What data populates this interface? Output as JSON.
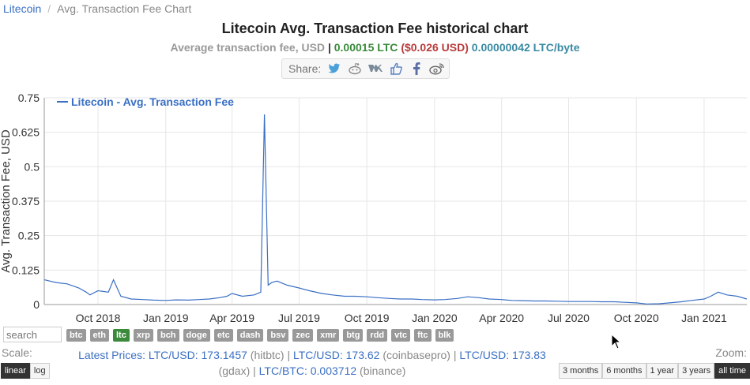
{
  "breadcrumb": {
    "home": "Litecoin",
    "current": "Avg. Transaction Fee Chart"
  },
  "header": {
    "title": "Litecoin Avg. Transaction Fee historical chart",
    "fee_label": "Average transaction fee, USD",
    "fee_ltc": "0.00015 LTC",
    "fee_usd": "($0.026 USD)",
    "fee_byte": "0.00000042 LTC/byte"
  },
  "share": {
    "label": "Share:",
    "icons": [
      "twitter-icon",
      "reddit-icon",
      "vk-icon",
      "like-icon",
      "facebook-icon",
      "weibo-icon"
    ]
  },
  "search": {
    "placeholder": "search"
  },
  "coins": [
    "btc",
    "eth",
    "ltc",
    "xrp",
    "bch",
    "doge",
    "etc",
    "dash",
    "bsv",
    "zec",
    "xmr",
    "btg",
    "rdd",
    "vtc",
    "ftc",
    "blk"
  ],
  "active_coin": "ltc",
  "scale": {
    "label": "Scale:",
    "options": [
      "linear",
      "log"
    ],
    "active": "linear"
  },
  "zoom": {
    "label": "Zoom:",
    "options": [
      "3 months",
      "6 months",
      "1 year",
      "3 years",
      "all time"
    ],
    "active": "all time"
  },
  "prices": {
    "latest_label": "Latest Prices:",
    "p1_pair": "LTC/USD: 173.1457",
    "p1_src": "(hitbtc)",
    "p2_pair": "LTC/USD: 173.62",
    "p2_src": "(coinbasepro)",
    "p3_pair": "LTC/USD: 173.83",
    "p3_src": "(gdax)",
    "p4_pair": "LTC/BTC: 0.003712",
    "p4_src": "(binance)"
  },
  "colors": {
    "series": "#3a6fc4",
    "grid": "#e6e6e6",
    "active_coin": "#3b8a3b"
  },
  "chart_data": {
    "type": "line",
    "title": "",
    "xlabel": "",
    "ylabel": "Avg. Transaction Fee, USD",
    "ylim": [
      0,
      0.75
    ],
    "yticks": [
      0,
      0.125,
      0.25,
      0.375,
      0.5,
      0.625,
      0.75
    ],
    "ytick_labels": [
      "0",
      "0.125",
      "0.25",
      "0.375",
      "0.5",
      "0.625",
      "0.75"
    ],
    "xticks": [
      "2018-10-01",
      "2019-01-01",
      "2019-04-01",
      "2019-07-01",
      "2019-10-01",
      "2020-01-01",
      "2020-04-01",
      "2020-07-01",
      "2020-10-01",
      "2021-01-01"
    ],
    "xtick_labels": [
      "Oct 2018",
      "Jan 2019",
      "Apr 2019",
      "Jul 2019",
      "Oct 2019",
      "Jan 2020",
      "Apr 2020",
      "Jul 2020",
      "Oct 2020",
      "Jan 2021"
    ],
    "xlim": [
      "2018-07-20",
      "2021-02-28"
    ],
    "grid": true,
    "legend": "top-left",
    "series": [
      {
        "name": "Litecoin - Avg. Transaction Fee",
        "x": [
          "2018-07-20",
          "2018-08-05",
          "2018-08-20",
          "2018-09-05",
          "2018-09-15",
          "2018-09-20",
          "2018-10-01",
          "2018-10-15",
          "2018-10-22",
          "2018-11-01",
          "2018-11-15",
          "2018-12-01",
          "2018-12-15",
          "2019-01-01",
          "2019-01-15",
          "2019-02-01",
          "2019-02-15",
          "2019-03-01",
          "2019-03-15",
          "2019-03-25",
          "2019-04-01",
          "2019-04-15",
          "2019-05-01",
          "2019-05-10",
          "2019-05-15",
          "2019-05-20",
          "2019-05-25",
          "2019-06-01",
          "2019-06-15",
          "2019-07-01",
          "2019-07-15",
          "2019-08-01",
          "2019-08-15",
          "2019-09-01",
          "2019-09-15",
          "2019-10-01",
          "2019-10-15",
          "2019-11-01",
          "2019-11-15",
          "2019-12-01",
          "2019-12-15",
          "2020-01-01",
          "2020-01-15",
          "2020-02-01",
          "2020-02-15",
          "2020-03-01",
          "2020-03-15",
          "2020-04-01",
          "2020-04-15",
          "2020-05-01",
          "2020-05-15",
          "2020-06-01",
          "2020-06-15",
          "2020-07-01",
          "2020-07-15",
          "2020-08-01",
          "2020-08-15",
          "2020-09-01",
          "2020-09-15",
          "2020-10-01",
          "2020-10-15",
          "2020-11-01",
          "2020-11-15",
          "2020-12-01",
          "2020-12-15",
          "2021-01-01",
          "2021-01-10",
          "2021-01-20",
          "2021-02-01",
          "2021-02-15",
          "2021-02-28"
        ],
        "values": [
          0.09,
          0.08,
          0.075,
          0.06,
          0.045,
          0.035,
          0.05,
          0.045,
          0.09,
          0.03,
          0.02,
          0.018,
          0.016,
          0.015,
          0.017,
          0.016,
          0.018,
          0.02,
          0.025,
          0.03,
          0.04,
          0.03,
          0.035,
          0.045,
          0.69,
          0.07,
          0.08,
          0.085,
          0.07,
          0.06,
          0.05,
          0.04,
          0.035,
          0.03,
          0.03,
          0.028,
          0.025,
          0.022,
          0.02,
          0.02,
          0.018,
          0.017,
          0.018,
          0.022,
          0.028,
          0.025,
          0.02,
          0.018,
          0.015,
          0.014,
          0.013,
          0.013,
          0.012,
          0.011,
          0.011,
          0.011,
          0.01,
          0.01,
          0.008,
          0.006,
          0.002,
          0.003,
          0.006,
          0.01,
          0.015,
          0.02,
          0.03,
          0.045,
          0.035,
          0.03,
          0.02
        ]
      }
    ]
  }
}
